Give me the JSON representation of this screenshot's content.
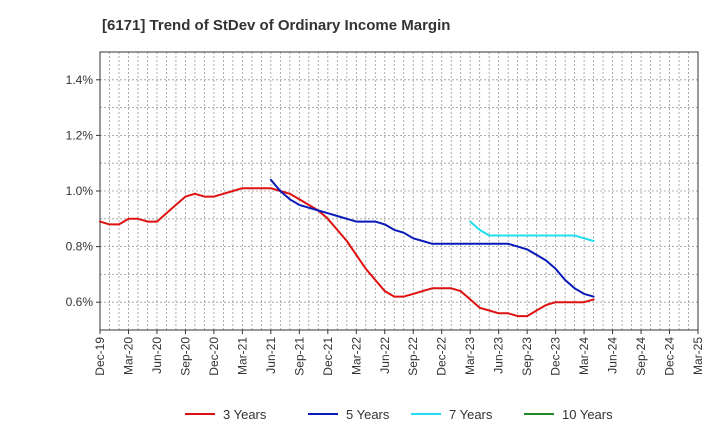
{
  "chart_data": {
    "type": "line",
    "title": "[6171]  Trend of StDev of Ordinary Income Margin",
    "xlabel": "",
    "ylabel": "",
    "x_tick_labels": [
      "Dec-19",
      "Mar-20",
      "Jun-20",
      "Sep-20",
      "Dec-20",
      "Mar-21",
      "Jun-21",
      "Sep-21",
      "Dec-21",
      "Mar-22",
      "Jun-22",
      "Sep-22",
      "Dec-22",
      "Mar-23",
      "Jun-23",
      "Sep-23",
      "Dec-23",
      "Mar-24",
      "Jun-24",
      "Sep-24",
      "Dec-24",
      "Mar-25"
    ],
    "y_ticks": [
      "0.6%",
      "0.8%",
      "1.0%",
      "1.2%",
      "1.4%"
    ],
    "y_tick_values": [
      0.6,
      0.8,
      1.0,
      1.2,
      1.4
    ],
    "ylim": [
      0.5,
      1.5
    ],
    "grid": true,
    "legend_position": "bottom",
    "series": [
      {
        "name": "3 Years",
        "color": "#dd1111",
        "values": [
          0.89,
          0.88,
          0.88,
          0.9,
          0.9,
          0.89,
          0.89,
          0.92,
          0.95,
          0.98,
          0.99,
          0.98,
          0.98,
          0.99,
          1.0,
          1.01,
          1.01,
          1.01,
          1.01,
          1.0,
          0.99,
          0.97,
          0.95,
          0.93,
          0.9,
          0.86,
          0.82,
          0.77,
          0.72,
          0.68,
          0.64,
          0.62,
          0.62,
          0.63,
          0.64,
          0.65,
          0.65,
          0.65,
          0.64,
          0.61,
          0.58,
          0.57,
          0.56,
          0.56,
          0.55,
          0.55,
          0.57,
          0.59,
          0.6,
          0.6,
          0.6,
          0.6,
          0.61
        ]
      },
      {
        "name": "5 Years",
        "color": "#0a1ab8",
        "values": [
          null,
          null,
          null,
          null,
          null,
          null,
          null,
          null,
          null,
          null,
          null,
          null,
          null,
          null,
          null,
          null,
          null,
          null,
          1.04,
          1.0,
          0.97,
          0.95,
          0.94,
          0.93,
          0.92,
          0.91,
          0.9,
          0.89,
          0.89,
          0.89,
          0.88,
          0.86,
          0.85,
          0.83,
          0.82,
          0.81,
          0.81,
          0.81,
          0.81,
          0.81,
          0.81,
          0.81,
          0.81,
          0.81,
          0.8,
          0.79,
          0.77,
          0.75,
          0.72,
          0.68,
          0.65,
          0.63,
          0.62
        ]
      },
      {
        "name": "7 Years",
        "color": "#22ddee",
        "values": [
          null,
          null,
          null,
          null,
          null,
          null,
          null,
          null,
          null,
          null,
          null,
          null,
          null,
          null,
          null,
          null,
          null,
          null,
          null,
          null,
          null,
          null,
          null,
          null,
          null,
          null,
          null,
          null,
          null,
          null,
          null,
          null,
          null,
          null,
          null,
          null,
          null,
          null,
          null,
          0.89,
          0.86,
          0.84,
          0.84,
          0.84,
          0.84,
          0.84,
          0.84,
          0.84,
          0.84,
          0.84,
          0.84,
          0.83,
          0.82
        ]
      },
      {
        "name": "10 Years",
        "color": "#228822",
        "values": []
      }
    ]
  }
}
